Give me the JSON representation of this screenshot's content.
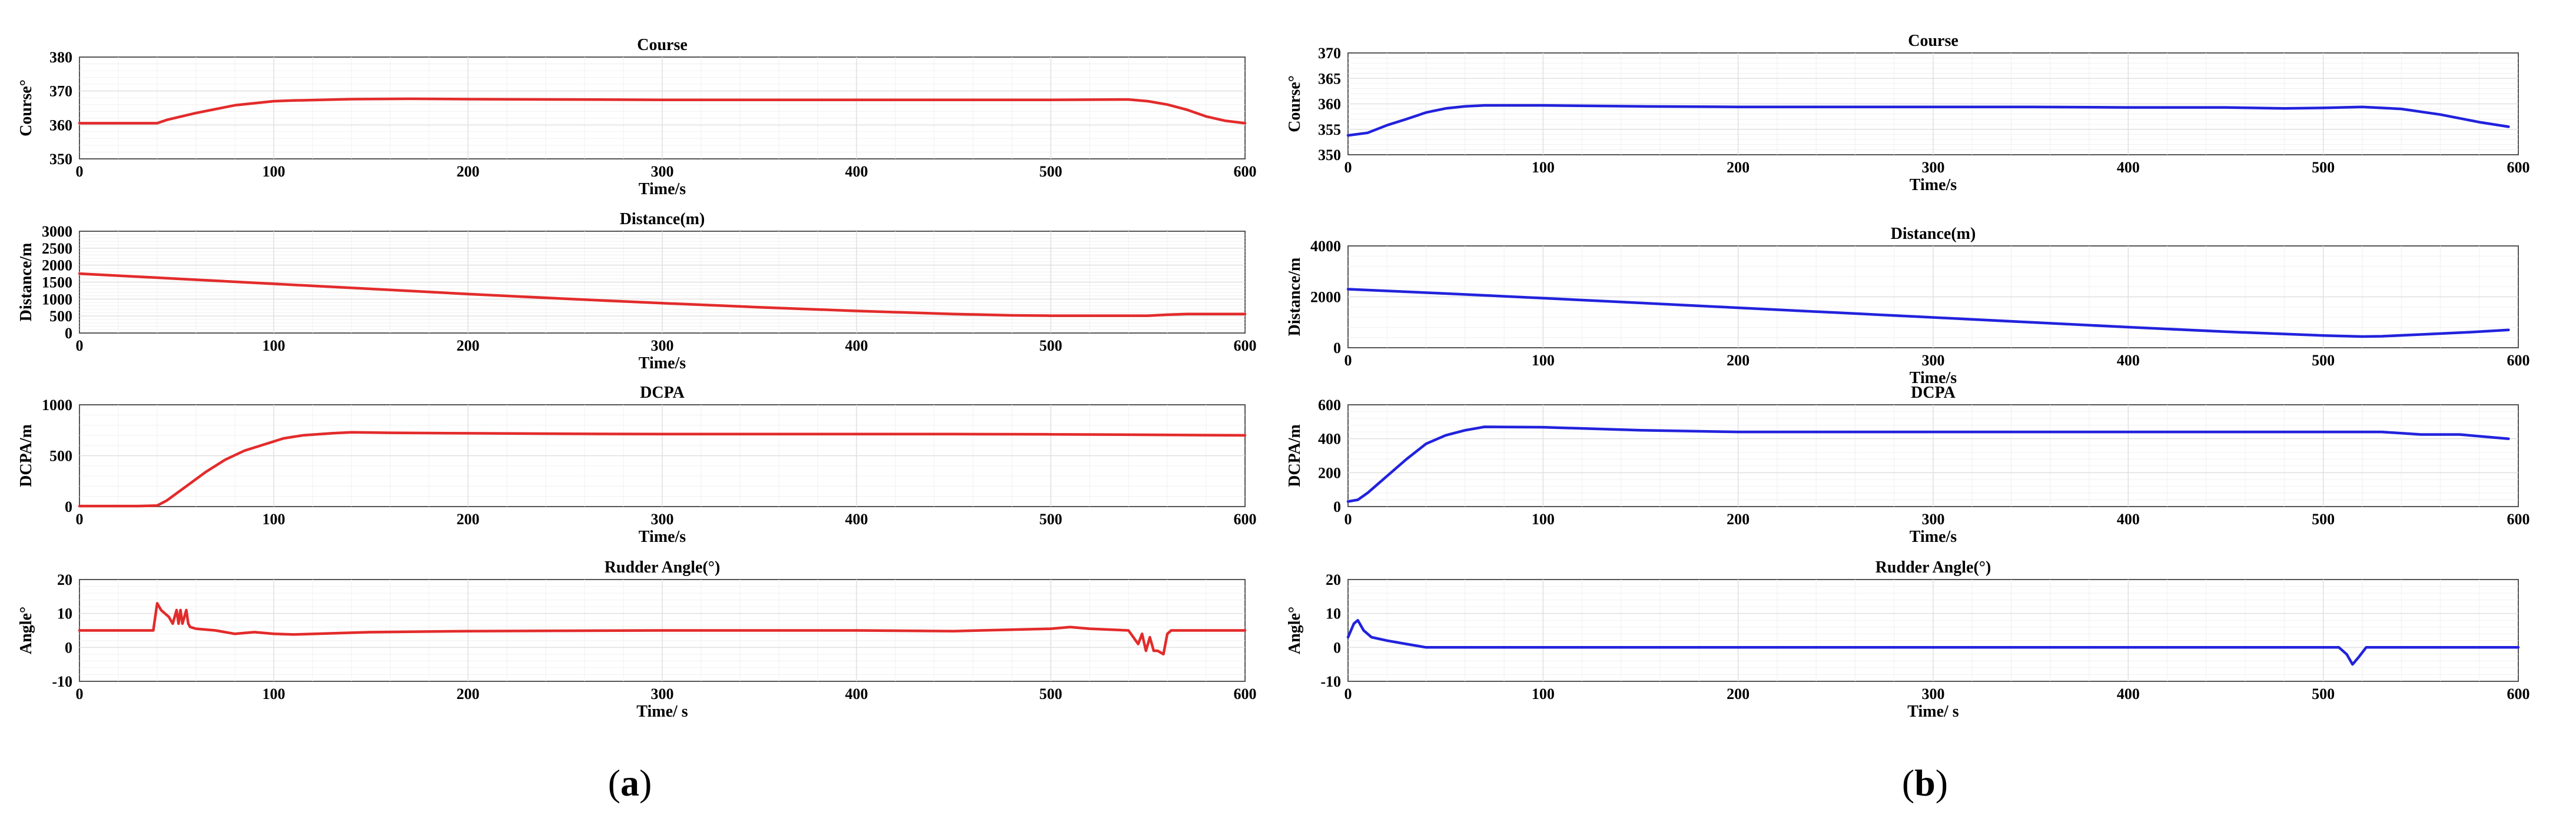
{
  "figure": {
    "panel_labels": [
      {
        "open": "(",
        "letter": "a",
        "close": ")"
      },
      {
        "open": "(",
        "letter": "b",
        "close": ")"
      }
    ]
  },
  "colors": {
    "panel_a": "#e32b2b",
    "panel_b": "#2222dd"
  },
  "chart_data": [
    {
      "type": "line",
      "panel": "a",
      "title": "Course",
      "xlabel": "Time/s",
      "ylabel": "Course°",
      "xlim": [
        0,
        600
      ],
      "ylim": [
        350,
        380
      ],
      "xticks": [
        0,
        100,
        200,
        300,
        400,
        500,
        600
      ],
      "yticks": [
        350,
        360,
        370,
        380
      ],
      "grid": true,
      "series": [
        {
          "color": "#e32b2b",
          "x": [
            0,
            40,
            45,
            60,
            80,
            100,
            110,
            140,
            170,
            200,
            300,
            400,
            500,
            540,
            550,
            560,
            570,
            580,
            590,
            600
          ],
          "y": [
            360.5,
            360.5,
            361.5,
            363.5,
            365.8,
            367.0,
            367.2,
            367.6,
            367.7,
            367.6,
            367.4,
            367.4,
            367.4,
            367.5,
            367.0,
            366.0,
            364.5,
            362.5,
            361.2,
            360.5
          ]
        }
      ]
    },
    {
      "type": "line",
      "panel": "a",
      "title": "Distance(m)",
      "xlabel": "Time/s",
      "ylabel": "Distance/m",
      "xlim": [
        0,
        600
      ],
      "ylim": [
        0,
        3000
      ],
      "xticks": [
        0,
        100,
        200,
        300,
        400,
        500,
        600
      ],
      "yticks": [
        0,
        500,
        1000,
        1500,
        2000,
        2500,
        3000
      ],
      "grid": true,
      "series": [
        {
          "color": "#e32b2b",
          "x": [
            0,
            50,
            100,
            150,
            200,
            250,
            300,
            350,
            400,
            450,
            480,
            500,
            550,
            560,
            570,
            600
          ],
          "y": [
            1750,
            1600,
            1450,
            1300,
            1150,
            1010,
            880,
            760,
            650,
            560,
            520,
            510,
            510,
            540,
            560,
            560
          ]
        }
      ]
    },
    {
      "type": "line",
      "panel": "a",
      "title": "DCPA",
      "xlabel": "Time/s",
      "ylabel": "DCPA/m",
      "xlim": [
        0,
        600
      ],
      "ylim": [
        0,
        1000
      ],
      "xticks": [
        0,
        100,
        200,
        300,
        400,
        500,
        600
      ],
      "yticks": [
        0,
        500,
        1000
      ],
      "grid": true,
      "series": [
        {
          "color": "#e32b2b",
          "x": [
            0,
            30,
            40,
            45,
            55,
            65,
            75,
            85,
            95,
            105,
            115,
            130,
            140,
            160,
            200,
            250,
            300,
            350,
            400,
            450,
            500,
            550,
            600
          ],
          "y": [
            5,
            5,
            10,
            60,
            200,
            340,
            460,
            550,
            610,
            670,
            700,
            720,
            730,
            725,
            720,
            715,
            712,
            712,
            712,
            712,
            710,
            705,
            700
          ]
        }
      ]
    },
    {
      "type": "line",
      "panel": "a",
      "title": "Rudder Angle(°)",
      "xlabel": "Time/ s",
      "ylabel": "Angle°",
      "xlim": [
        0,
        600
      ],
      "ylim": [
        -10,
        20
      ],
      "xticks": [
        0,
        100,
        200,
        300,
        400,
        500,
        600
      ],
      "yticks": [
        -10,
        0,
        10,
        20
      ],
      "grid": true,
      "series": [
        {
          "color": "#e32b2b",
          "x": [
            0,
            38,
            40,
            42,
            46,
            48,
            50,
            51,
            52,
            53,
            55,
            56,
            57,
            60,
            70,
            80,
            90,
            100,
            110,
            150,
            200,
            300,
            400,
            450,
            500,
            510,
            520,
            540,
            545,
            547,
            549,
            551,
            553,
            555,
            558,
            560,
            562,
            570,
            600
          ],
          "y": [
            5,
            5,
            13,
            11,
            9,
            7,
            11,
            7,
            11,
            7,
            11,
            7,
            6,
            5.5,
            5,
            4,
            4.5,
            4,
            3.8,
            4.5,
            4.8,
            5,
            5,
            4.8,
            5.5,
            6.0,
            5.5,
            5,
            1,
            4,
            -1,
            3,
            -1,
            -1,
            -2,
            4,
            5,
            5,
            5
          ]
        }
      ]
    },
    {
      "type": "line",
      "panel": "b",
      "title": "Course",
      "xlabel": "Time/s",
      "ylabel": "Course°",
      "xlim": [
        0,
        600
      ],
      "ylim": [
        350,
        370
      ],
      "xticks": [
        0,
        100,
        200,
        300,
        400,
        500,
        600
      ],
      "yticks": [
        350,
        355,
        360,
        365,
        370
      ],
      "grid": true,
      "series": [
        {
          "color": "#2222dd",
          "x": [
            0,
            10,
            20,
            30,
            40,
            50,
            60,
            70,
            100,
            150,
            200,
            250,
            300,
            350,
            400,
            450,
            480,
            500,
            520,
            540,
            560,
            580,
            595
          ],
          "y": [
            353.8,
            354.3,
            355.8,
            357.0,
            358.3,
            359.1,
            359.5,
            359.7,
            359.7,
            359.5,
            359.4,
            359.4,
            359.4,
            359.4,
            359.3,
            359.3,
            359.1,
            359.2,
            359.4,
            359.0,
            357.9,
            356.4,
            355.5
          ]
        }
      ]
    },
    {
      "type": "line",
      "panel": "b",
      "title": "Distance(m)",
      "xlabel": "Time/s",
      "ylabel": "Distance/m",
      "xlim": [
        0,
        600
      ],
      "ylim": [
        0,
        4000
      ],
      "xticks": [
        0,
        100,
        200,
        300,
        400,
        500,
        600
      ],
      "yticks": [
        0,
        2000,
        4000
      ],
      "grid": true,
      "series": [
        {
          "color": "#2222dd",
          "x": [
            0,
            50,
            100,
            150,
            200,
            250,
            300,
            350,
            400,
            450,
            500,
            520,
            530,
            550,
            575,
            595
          ],
          "y": [
            2300,
            2130,
            1950,
            1760,
            1570,
            1380,
            1190,
            1000,
            810,
            630,
            480,
            440,
            450,
            520,
            610,
            700
          ]
        }
      ]
    },
    {
      "type": "line",
      "panel": "b",
      "title": "DCPA",
      "xlabel": "Time/s",
      "ylabel": "DCPA/m",
      "xlim": [
        0,
        600
      ],
      "ylim": [
        0,
        600
      ],
      "xticks": [
        0,
        100,
        200,
        300,
        400,
        500,
        600
      ],
      "yticks": [
        0,
        200,
        400,
        600
      ],
      "grid": true,
      "series": [
        {
          "color": "#2222dd",
          "x": [
            0,
            5,
            10,
            15,
            20,
            30,
            40,
            50,
            60,
            70,
            100,
            150,
            200,
            250,
            300,
            350,
            400,
            450,
            500,
            530,
            550,
            570,
            595
          ],
          "y": [
            30,
            40,
            80,
            130,
            180,
            280,
            370,
            420,
            450,
            470,
            468,
            450,
            440,
            440,
            440,
            440,
            440,
            440,
            440,
            440,
            425,
            425,
            400
          ]
        }
      ]
    },
    {
      "type": "line",
      "panel": "b",
      "title": "Rudder Angle(°)",
      "xlabel": "Time/ s",
      "ylabel": "Angle°",
      "xlim": [
        0,
        600
      ],
      "ylim": [
        -10,
        20
      ],
      "xticks": [
        0,
        100,
        200,
        300,
        400,
        500,
        600
      ],
      "yticks": [
        -10,
        0,
        10,
        20
      ],
      "grid": true,
      "series": [
        {
          "color": "#2222dd",
          "x": [
            0,
            3,
            5,
            8,
            12,
            20,
            30,
            40,
            50,
            100,
            200,
            300,
            400,
            500,
            508,
            512,
            515,
            518,
            522,
            530,
            600
          ],
          "y": [
            3,
            7,
            8,
            5,
            3,
            2,
            1,
            0,
            0,
            0,
            0,
            0,
            0,
            0,
            0,
            -2,
            -5,
            -3,
            0,
            0,
            0
          ]
        }
      ]
    }
  ]
}
